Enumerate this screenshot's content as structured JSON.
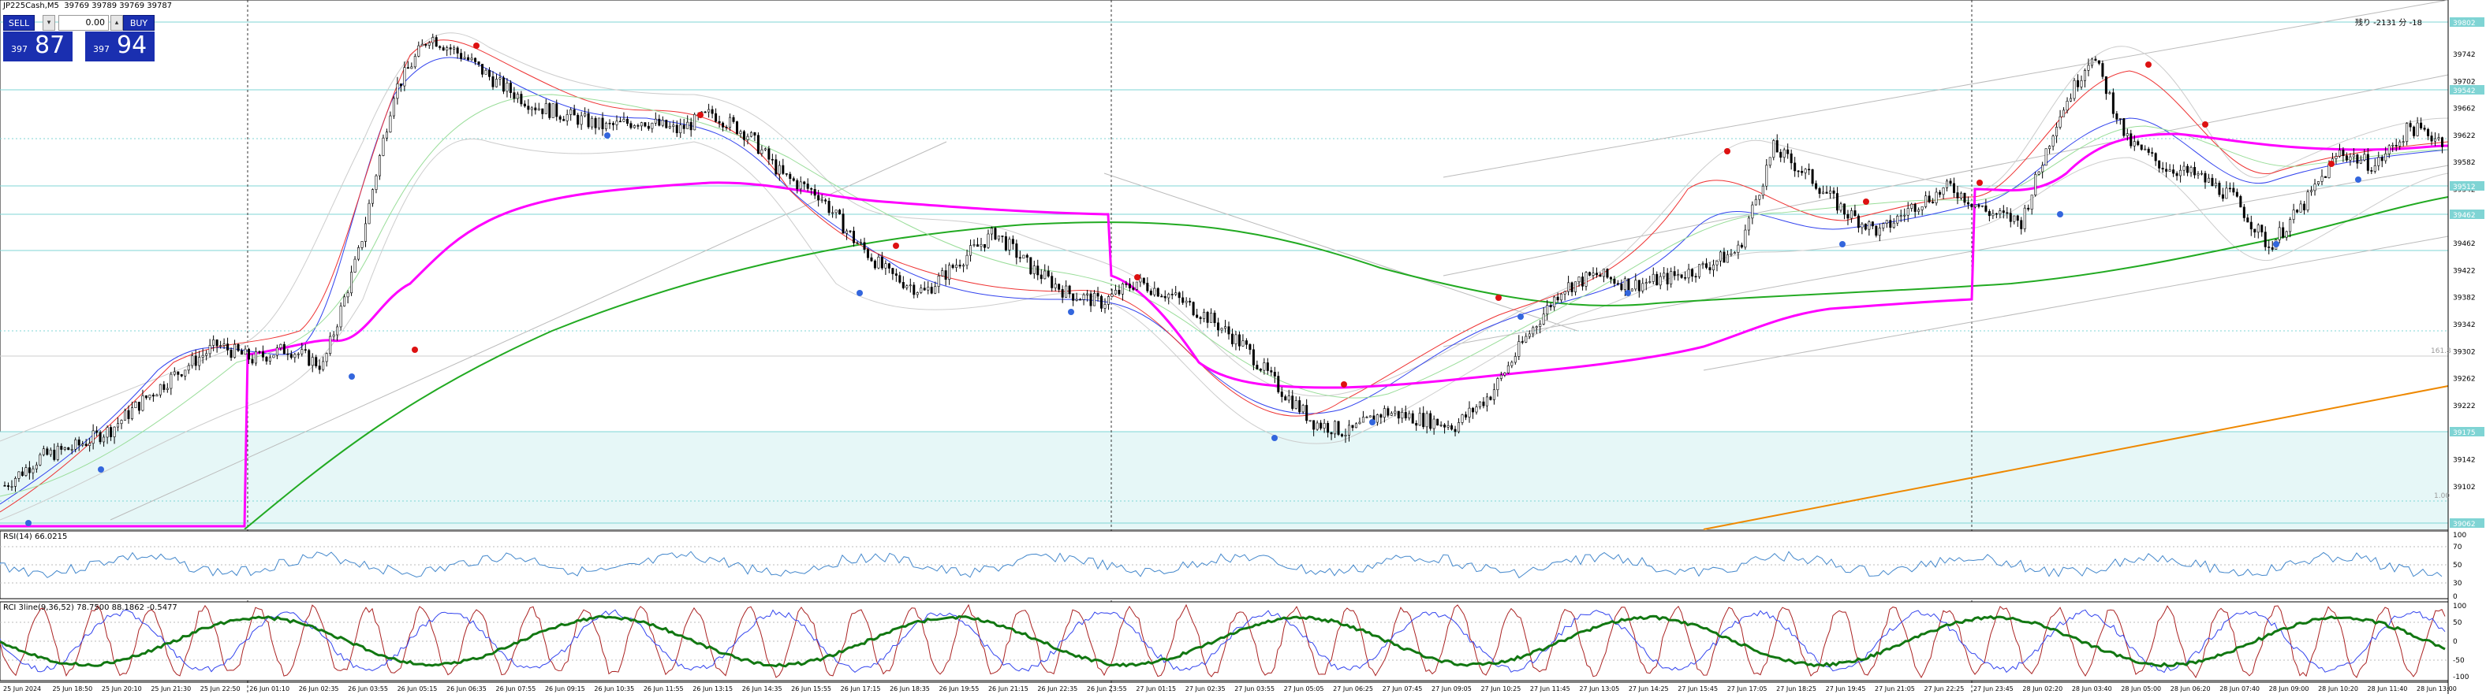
{
  "window": {
    "symbol_title": "JP225Cash,M5",
    "ohlc": "39769 39789 39769 39787"
  },
  "trade_panel": {
    "sell_label": "SELL",
    "buy_label": "BUY",
    "volume": "0.00",
    "sell_prefix": "397",
    "sell_big": "87",
    "buy_prefix": "397",
    "buy_big": "94"
  },
  "top_right_info": "残り -2131 分 -18",
  "price_axis": [
    "39742",
    "39702",
    "39662",
    "39622",
    "39582",
    "39542",
    "39502",
    "39462",
    "39422",
    "39382",
    "39342",
    "39302",
    "39262",
    "39222",
    "39182",
    "39142",
    "39102"
  ],
  "level_labels_right": [
    "39802",
    "39542",
    "39512",
    "39462",
    "39175",
    "39062"
  ],
  "fib_labels": [
    "161.8",
    "1.00"
  ],
  "time_axis": [
    "25 Jun 2024",
    "25 Jun 18:50",
    "25 Jun 20:10",
    "25 Jun 21:30",
    "25 Jun 22:50",
    "26 Jun 01:10",
    "26 Jun 02:35",
    "26 Jun 03:55",
    "26 Jun 05:15",
    "26 Jun 06:35",
    "26 Jun 07:55",
    "26 Jun 09:15",
    "26 Jun 10:35",
    "26 Jun 11:55",
    "26 Jun 13:15",
    "26 Jun 14:35",
    "26 Jun 15:55",
    "26 Jun 17:15",
    "26 Jun 18:35",
    "26 Jun 19:55",
    "26 Jun 21:15",
    "26 Jun 22:35",
    "26 Jun 23:55",
    "27 Jun 01:15",
    "27 Jun 02:35",
    "27 Jun 03:55",
    "27 Jun 05:05",
    "27 Jun 06:25",
    "27 Jun 07:45",
    "27 Jun 09:05",
    "27 Jun 10:25",
    "27 Jun 11:45",
    "27 Jun 13:05",
    "27 Jun 14:25",
    "27 Jun 15:45",
    "27 Jun 17:05",
    "27 Jun 18:25",
    "27 Jun 19:45",
    "27 Jun 21:05",
    "27 Jun 22:25",
    "27 Jun 23:45",
    "28 Jun 02:20",
    "28 Jun 03:40",
    "28 Jun 05:00",
    "28 Jun 06:20",
    "28 Jun 07:40",
    "28 Jun 09:00",
    "28 Jun 10:20",
    "28 Jun 11:40",
    "28 Jun 13:00"
  ],
  "rsi": {
    "label": "RSI(14) 66.0215",
    "levels": [
      "100",
      "70",
      "50",
      "30",
      "0"
    ]
  },
  "rci": {
    "label": "RCI 3line(9,36,52) 78.7500 88.1862 -0.5477",
    "levels": [
      "100",
      "50",
      "0",
      "-50",
      "-100"
    ]
  },
  "colors": {
    "candles": "#000000",
    "vwap": "#ff00ff",
    "ma_long": "#22aa22",
    "ma_mid": "#3344ee",
    "ma_fast": "#ee3333",
    "trend_orange": "#ee8800",
    "levels": "#7fd4d4",
    "zone": "#e6f7f7",
    "rsi": "#4488cc"
  },
  "chart_data": {
    "type": "line",
    "title": "",
    "series": [
      {
        "name": "",
        "values": [
          39120,
          39160,
          39175,
          39200,
          39245,
          39285,
          39320,
          39300,
          39315,
          39290,
          39450,
          39680,
          39760,
          39730,
          39690,
          39660,
          39645,
          39630,
          39640,
          39625,
          39650,
          39620,
          39560,
          39535,
          39470,
          39420,
          39395,
          39440,
          39480,
          39430,
          39395,
          39380,
          39410,
          39390,
          39360,
          39320,
          39260,
          39210,
          39195,
          39225,
          39215,
          39205,
          39250,
          39330,
          39400,
          39420,
          39405,
          39415,
          39430,
          39455,
          39600,
          39560,
          39510,
          39480,
          39520,
          39545,
          39510,
          39495,
          39640,
          39735,
          39610,
          39575,
          39560,
          39530,
          39460,
          39520,
          39595,
          39575,
          39630,
          39610
        ]
      }
    ],
    "ylim": [
      39062,
      39802
    ]
  }
}
